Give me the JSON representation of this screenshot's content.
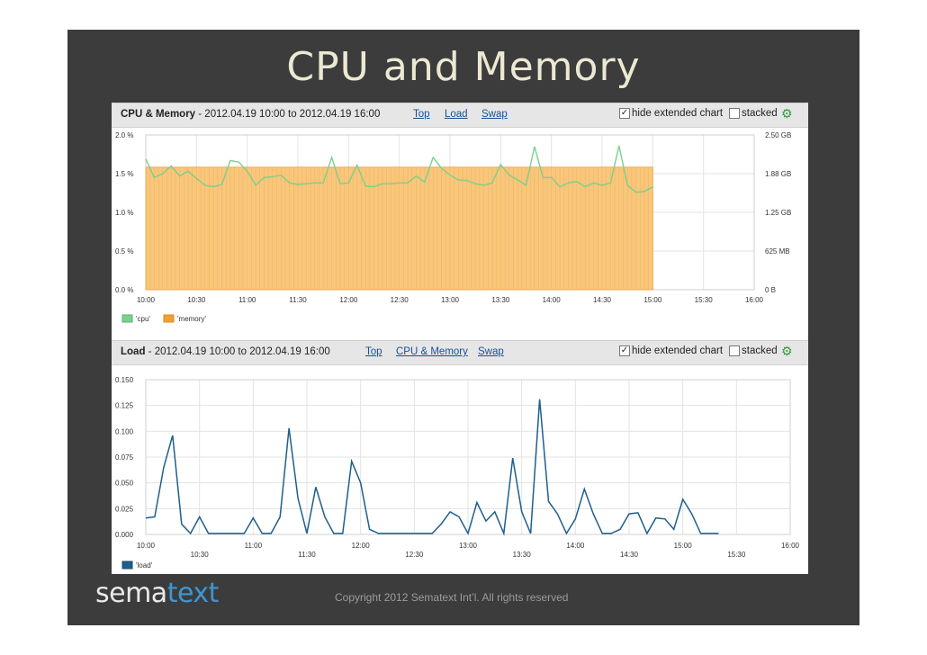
{
  "slide": {
    "title": "CPU and Memory",
    "copyright": "Copyright 2012 Sematext Int’l. All rights reserved",
    "logo_part1": "sema",
    "logo_part2": "text"
  },
  "colors": {
    "cpu": "#7ccf8e",
    "memory_fill": "#f8c77c",
    "memory_line": "#f0a030",
    "load": "#1f5f8b"
  },
  "cpu_chart": {
    "title_bold": "CPU & Memory",
    "title_range": " - 2012.04.19 10:00 to 2012.04.19 16:00",
    "links": [
      "Top",
      "Load",
      "Swap"
    ],
    "hide_extended": "hide extended chart",
    "stacked": "stacked"
  },
  "load_chart": {
    "title_bold": "Load",
    "title_range": " - 2012.04.19 10:00 to 2012.04.19 16:00",
    "links": [
      "Top",
      "CPU & Memory",
      "Swap"
    ],
    "hide_extended": "hide extended chart",
    "stacked": "stacked"
  },
  "chart_data": [
    {
      "type": "line",
      "title": "CPU & Memory - 2012.04.19 10:00 to 2012.04.19 16:00",
      "x_ticks": [
        "10:00",
        "10:30",
        "11:00",
        "11:30",
        "12:00",
        "12:30",
        "13:00",
        "13:30",
        "14:00",
        "14:30",
        "15:00",
        "15:30",
        "16:00"
      ],
      "y_left_ticks": [
        "0.0 %",
        "0.5 %",
        "1.0 %",
        "1.5 %",
        "2.0 %"
      ],
      "y_left_range": [
        0,
        2.0
      ],
      "y_right_ticks": [
        "0 B",
        "625 MB",
        "1.25 GB",
        "1.88 GB",
        "2.50 GB"
      ],
      "legend": [
        "'cpu'",
        "'memory'"
      ],
      "grid": true,
      "series": [
        {
          "name": "'cpu'",
          "axis": "left",
          "x_start_minutes": 0,
          "x_step_minutes": 5,
          "values": [
            1.69,
            1.45,
            1.5,
            1.6,
            1.47,
            1.53,
            1.44,
            1.35,
            1.33,
            1.36,
            1.67,
            1.65,
            1.53,
            1.35,
            1.45,
            1.46,
            1.48,
            1.38,
            1.36,
            1.37,
            1.38,
            1.38,
            1.71,
            1.37,
            1.38,
            1.61,
            1.34,
            1.33,
            1.37,
            1.37,
            1.38,
            1.38,
            1.47,
            1.39,
            1.71,
            1.57,
            1.48,
            1.42,
            1.41,
            1.37,
            1.35,
            1.38,
            1.62,
            1.48,
            1.42,
            1.35,
            1.85,
            1.45,
            1.45,
            1.33,
            1.38,
            1.4,
            1.33,
            1.38,
            1.35,
            1.38,
            1.86,
            1.35,
            1.26,
            1.27,
            1.33
          ]
        },
        {
          "name": "'memory'",
          "axis": "right",
          "type": "bar",
          "x_start_minutes": 0,
          "x_end_minutes": 300,
          "value_gb": 1.98
        }
      ]
    },
    {
      "type": "line",
      "title": "Load - 2012.04.19 10:00 to 2012.04.19 16:00",
      "x_ticks": [
        "10:00",
        "10:30",
        "11:00",
        "11:30",
        "12:00",
        "12:30",
        "13:00",
        "13:30",
        "14:00",
        "14:30",
        "15:00",
        "15:30",
        "16:00"
      ],
      "y_ticks": [
        "0.000",
        "0.025",
        "0.050",
        "0.075",
        "0.100",
        "0.125",
        "0.150"
      ],
      "ylim": [
        0,
        0.15
      ],
      "legend": [
        "'load'"
      ],
      "grid": true,
      "series": [
        {
          "name": "'load'",
          "x_start_minutes": 0,
          "x_step_minutes": 5,
          "values": [
            0.016,
            0.017,
            0.065,
            0.096,
            0.01,
            0.001,
            0.017,
            0.001,
            0.001,
            0.001,
            0.001,
            0.001,
            0.016,
            0.001,
            0.001,
            0.017,
            0.103,
            0.035,
            0.001,
            0.046,
            0.017,
            0.001,
            0.001,
            0.071,
            0.05,
            0.005,
            0.001,
            0.001,
            0.001,
            0.001,
            0.001,
            0.001,
            0.001,
            0.01,
            0.022,
            0.017,
            0.001,
            0.031,
            0.013,
            0.022,
            0.001,
            0.074,
            0.022,
            0.001,
            0.131,
            0.032,
            0.02,
            0.001,
            0.015,
            0.044,
            0.02,
            0.001,
            0.001,
            0.005,
            0.02,
            0.021,
            0.001,
            0.016,
            0.015,
            0.005,
            0.034,
            0.02,
            0.001,
            0.001,
            0.001
          ]
        }
      ]
    }
  ]
}
